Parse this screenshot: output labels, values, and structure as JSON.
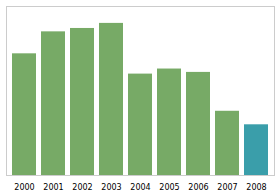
{
  "chart_data": {
    "type": "bar",
    "categories": [
      "2000",
      "2001",
      "2002",
      "2003",
      "2004",
      "2005",
      "2006",
      "2007",
      "2008"
    ],
    "values": [
      72,
      85,
      87,
      90,
      60,
      63,
      61,
      38,
      30
    ],
    "colors": [
      "#77aa66",
      "#77aa66",
      "#77aa66",
      "#77aa66",
      "#77aa66",
      "#77aa66",
      "#77aa66",
      "#77aa66",
      "#3a9eaa"
    ],
    "ylim": [
      0,
      100
    ],
    "yticks": [],
    "grid": false,
    "tick_labels": "x"
  }
}
